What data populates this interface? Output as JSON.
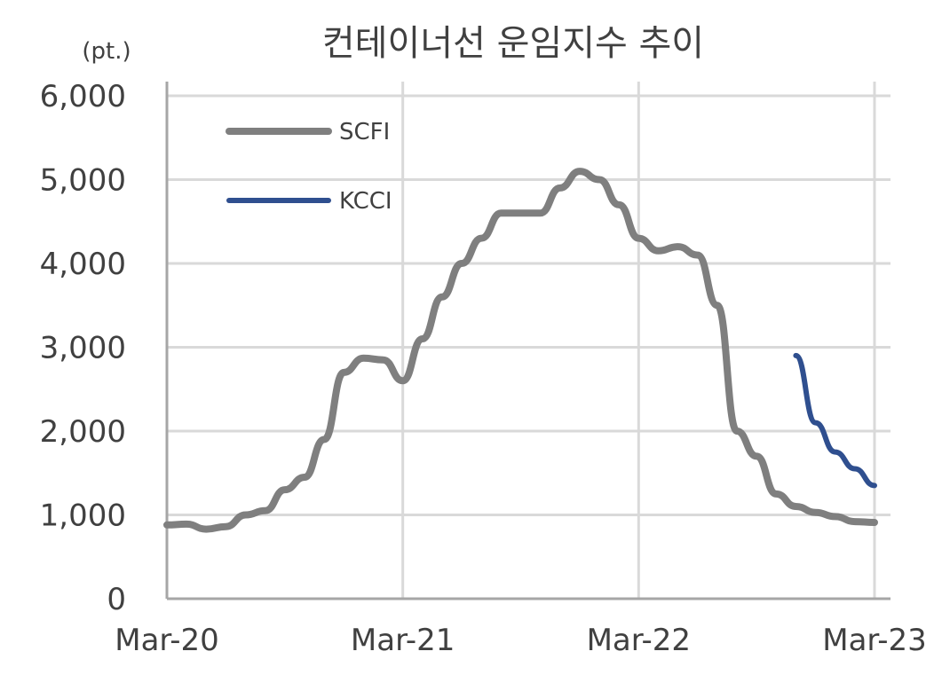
{
  "chart_data": {
    "type": "line",
    "title": "컨테이너선 운임지수 추이",
    "ylabel": "(pt.)",
    "xlabel": "",
    "ylim": [
      0,
      6000
    ],
    "yticks": [
      "0",
      "1,000",
      "2,000",
      "3,000",
      "4,000",
      "5,000",
      "6,000"
    ],
    "yticks_values": [
      0,
      1000,
      2000,
      3000,
      4000,
      5000,
      6000
    ],
    "xticks": [
      "Mar-20",
      "Mar-21",
      "Mar-22",
      "Mar-23"
    ],
    "xlim": [
      "2020-03",
      "2023-03"
    ],
    "grid": true,
    "legend": "top-left",
    "series": [
      {
        "name": "SCFI",
        "color": "#7f7f7f",
        "x": [
          "2020-03",
          "2020-04",
          "2020-05",
          "2020-06",
          "2020-07",
          "2020-08",
          "2020-09",
          "2020-10",
          "2020-11",
          "2020-12",
          "2021-01",
          "2021-02",
          "2021-03",
          "2021-04",
          "2021-05",
          "2021-06",
          "2021-07",
          "2021-08",
          "2021-09",
          "2021-10",
          "2021-11",
          "2021-12",
          "2022-01",
          "2022-02",
          "2022-03",
          "2022-04",
          "2022-05",
          "2022-06",
          "2022-07",
          "2022-08",
          "2022-09",
          "2022-10",
          "2022-11",
          "2022-12",
          "2023-01",
          "2023-02",
          "2023-03"
        ],
        "values": [
          880,
          890,
          830,
          860,
          1000,
          1050,
          1300,
          1450,
          1900,
          2700,
          2870,
          2850,
          2600,
          3100,
          3600,
          4000,
          4300,
          4600,
          4600,
          4600,
          4900,
          5100,
          5000,
          4700,
          4300,
          4150,
          4200,
          4100,
          3500,
          2000,
          1700,
          1250,
          1100,
          1030,
          980,
          920,
          910
        ]
      },
      {
        "name": "KCCI",
        "color": "#2f4f8f",
        "x": [
          "2022-11",
          "2022-12",
          "2023-01",
          "2023-02",
          "2023-03"
        ],
        "values": [
          2900,
          2100,
          1750,
          1550,
          1350
        ]
      }
    ]
  }
}
